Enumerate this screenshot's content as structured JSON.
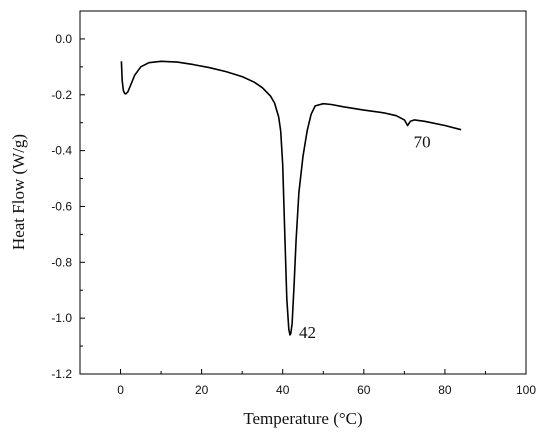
{
  "chart_data": {
    "type": "line",
    "title": "",
    "xlabel": "Temperature (°C)",
    "ylabel": "Heat Flow (W/g)",
    "xlim": [
      -10,
      100
    ],
    "ylim": [
      -1.2,
      0.1
    ],
    "grid": false,
    "legend": "none",
    "x_ticks": [
      "0",
      "20",
      "40",
      "60",
      "80",
      "100"
    ],
    "x_tick_values": [
      0,
      20,
      40,
      60,
      80,
      100
    ],
    "y_ticks": [
      "0.0",
      "-0.2",
      "-0.4",
      "-0.6",
      "-0.8",
      "-1.0",
      "-1.2"
    ],
    "y_tick_values": [
      0.0,
      -0.2,
      -0.4,
      -0.6,
      -0.8,
      -1.0,
      -1.2
    ],
    "series": [
      {
        "color": "#000000",
        "x": [
          0.2,
          0.4,
          0.7,
          1.0,
          1.3,
          1.8,
          2.5,
          3.5,
          5,
          7,
          10,
          14,
          18,
          22,
          26,
          30,
          33,
          35,
          37,
          38,
          39,
          39.5,
          40,
          40.5,
          41,
          41.5,
          41.8,
          42,
          42.3,
          42.8,
          43.3,
          44,
          45,
          46,
          47,
          48,
          50,
          52,
          55,
          60,
          65,
          68,
          70,
          70.8,
          71.5,
          72.5,
          75,
          80,
          84
        ],
        "y": [
          -0.08,
          -0.15,
          -0.185,
          -0.195,
          -0.197,
          -0.19,
          -0.165,
          -0.13,
          -0.1,
          -0.085,
          -0.08,
          -0.083,
          -0.092,
          -0.103,
          -0.117,
          -0.135,
          -0.155,
          -0.175,
          -0.205,
          -0.23,
          -0.28,
          -0.33,
          -0.45,
          -0.7,
          -0.93,
          -1.04,
          -1.06,
          -1.055,
          -1.02,
          -0.88,
          -0.72,
          -0.55,
          -0.42,
          -0.33,
          -0.27,
          -0.24,
          -0.232,
          -0.235,
          -0.243,
          -0.255,
          -0.265,
          -0.275,
          -0.29,
          -0.31,
          -0.295,
          -0.29,
          -0.295,
          -0.31,
          -0.325
        ]
      }
    ],
    "annotations": [
      {
        "text": "42",
        "x": 41.8,
        "y": -1.06
      },
      {
        "text": "70",
        "x": 70.8,
        "y": -0.31
      }
    ]
  }
}
